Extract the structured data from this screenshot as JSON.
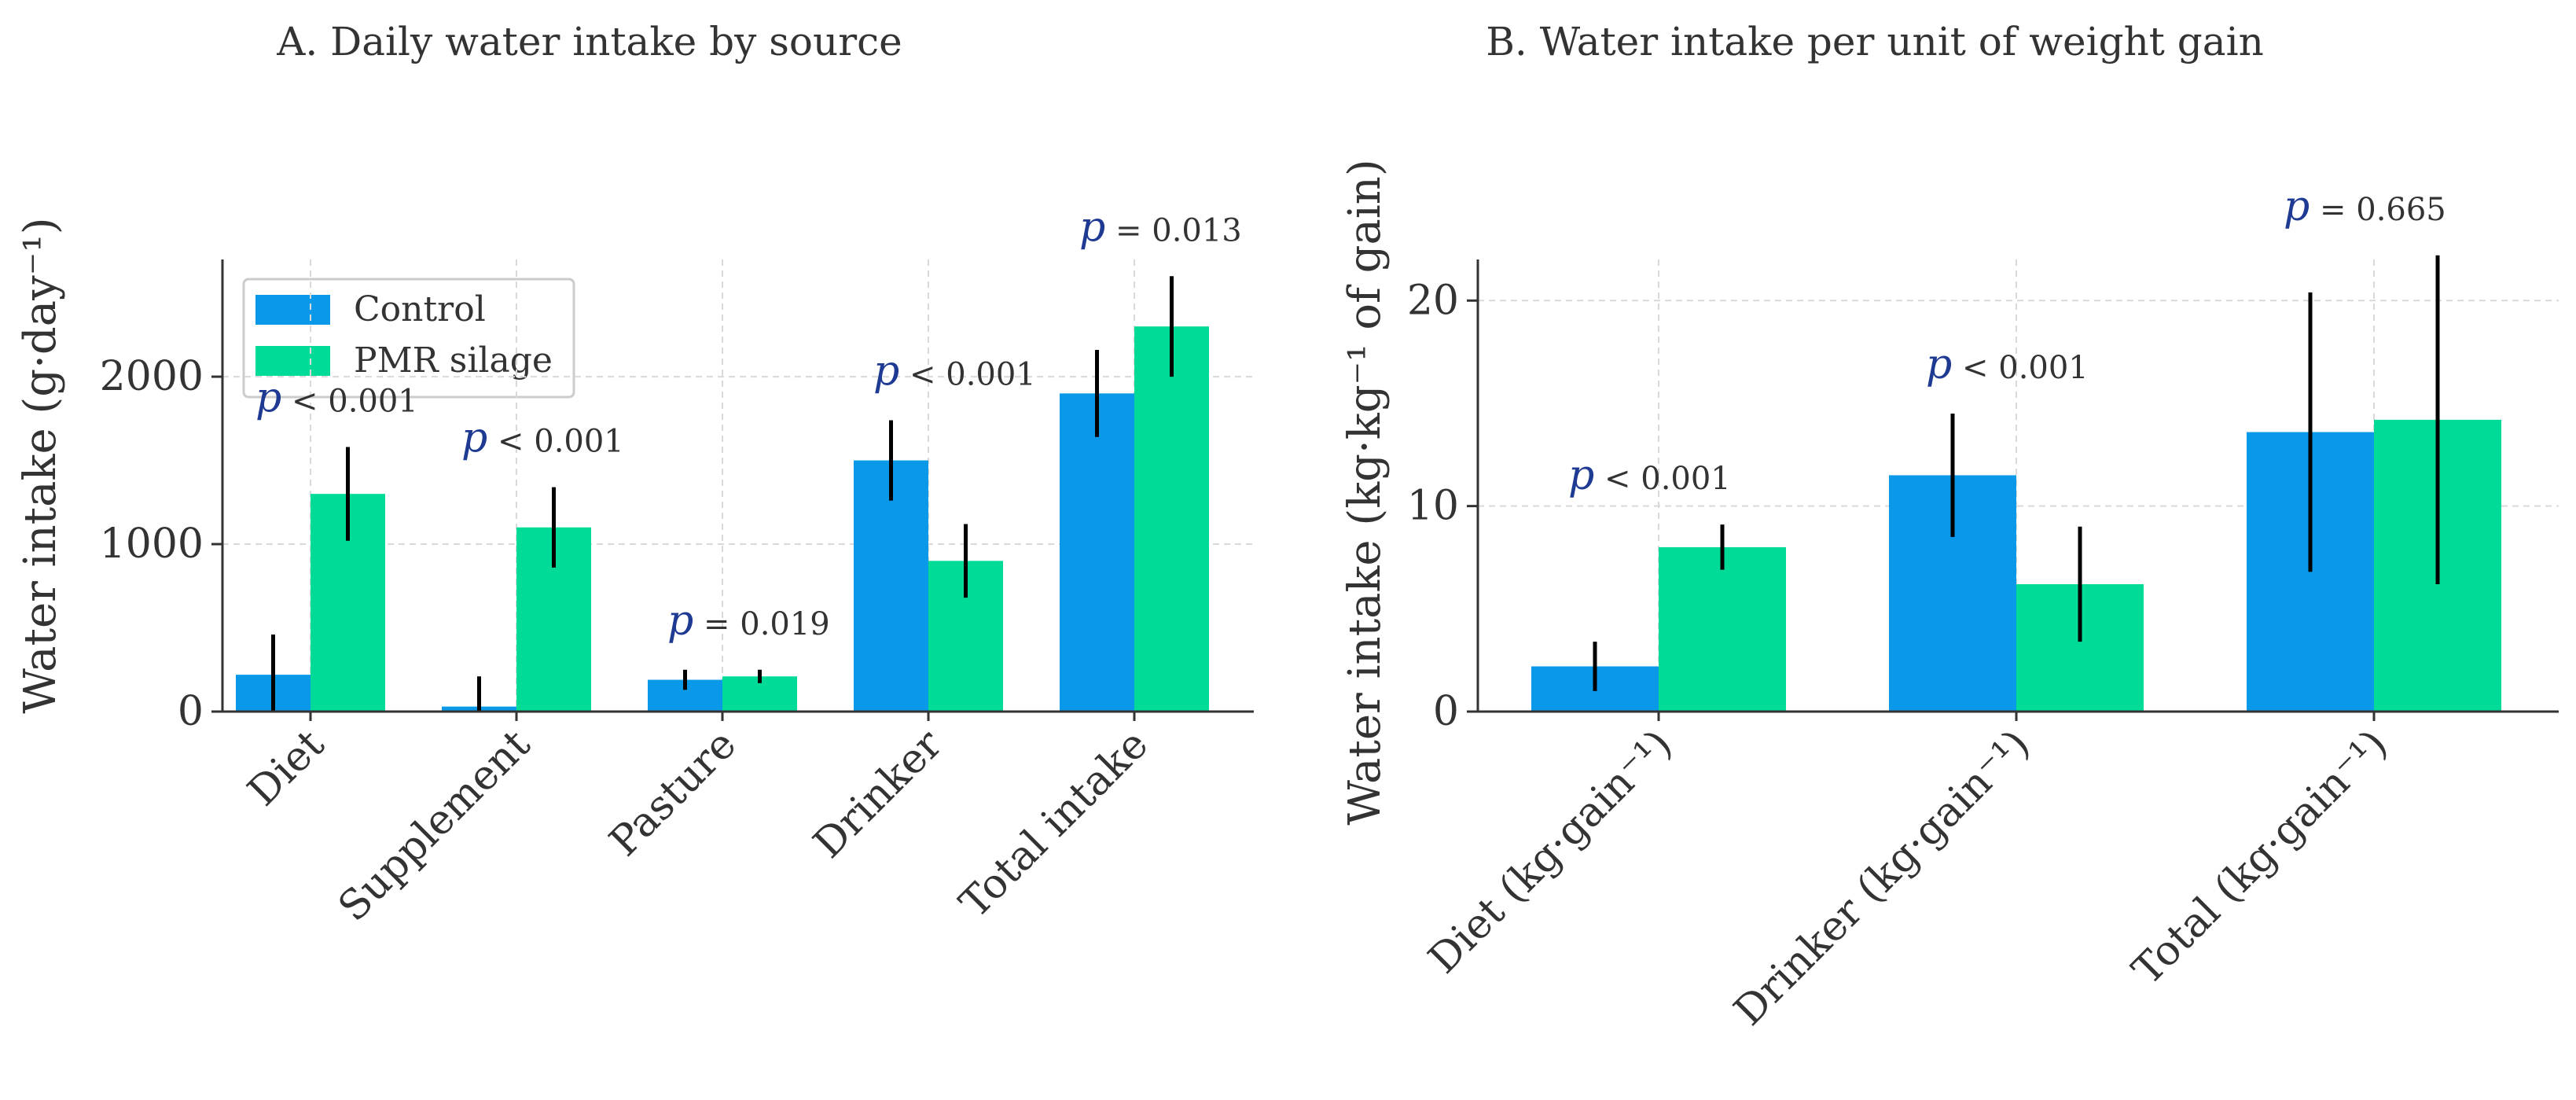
{
  "colors": {
    "control": "#0a99e8",
    "pmr": "#00dc98",
    "error": "#000000",
    "grid": "#d9d9d9"
  },
  "chart_data": [
    {
      "type": "bar",
      "title": "A. Daily water intake by source",
      "ylabel": "Water intake (g·day⁻¹)",
      "xlabel": "",
      "ylim": [
        0,
        2700
      ],
      "yticks": [
        0,
        1000,
        2000
      ],
      "grid": true,
      "legend": {
        "position": "top-left",
        "entries": [
          "Control",
          "PMR silage"
        ]
      },
      "categories": [
        "Diet",
        "Supplement",
        "Pasture",
        "Drinker",
        "Total intake"
      ],
      "series": [
        {
          "name": "Control",
          "values": [
            220,
            30,
            190,
            1500,
            1900
          ],
          "errors": [
            240,
            180,
            60,
            240,
            260
          ]
        },
        {
          "name": "PMR silage",
          "values": [
            1300,
            1100,
            210,
            900,
            2300
          ],
          "errors": [
            280,
            240,
            40,
            220,
            300
          ]
        }
      ],
      "annotations": [
        {
          "category": "Diet",
          "sym": "p",
          "text": "< 0.001"
        },
        {
          "category": "Supplement",
          "sym": "p",
          "text": "< 0.001"
        },
        {
          "category": "Pasture",
          "sym": "p",
          "text": "= 0.019"
        },
        {
          "category": "Drinker",
          "sym": "p",
          "text": "< 0.001"
        },
        {
          "category": "Total intake",
          "sym": "p",
          "text": "= 0.013"
        }
      ]
    },
    {
      "type": "bar",
      "title": "B. Water intake per unit of weight gain",
      "ylabel": "Water intake (kg·kg⁻¹ of gain)",
      "xlabel": "",
      "ylim": [
        0,
        22
      ],
      "yticks": [
        0,
        10,
        20
      ],
      "grid": true,
      "categories": [
        "Diet (kg·gain⁻¹)",
        "Drinker (kg·gain⁻¹)",
        "Total (kg·gain⁻¹)"
      ],
      "series": [
        {
          "name": "Control",
          "values": [
            2.2,
            11.5,
            13.6
          ],
          "errors": [
            1.2,
            3.0,
            6.8
          ]
        },
        {
          "name": "PMR silage",
          "values": [
            8.0,
            6.2,
            14.2
          ],
          "errors": [
            1.1,
            2.8,
            8.0
          ]
        }
      ],
      "annotations": [
        {
          "category": "Diet (kg·gain⁻¹)",
          "sym": "p",
          "text": "< 0.001"
        },
        {
          "category": "Drinker (kg·gain⁻¹)",
          "sym": "p",
          "text": "< 0.001"
        },
        {
          "category": "Total (kg·gain⁻¹)",
          "sym": "p",
          "text": "= 0.665"
        }
      ]
    }
  ]
}
